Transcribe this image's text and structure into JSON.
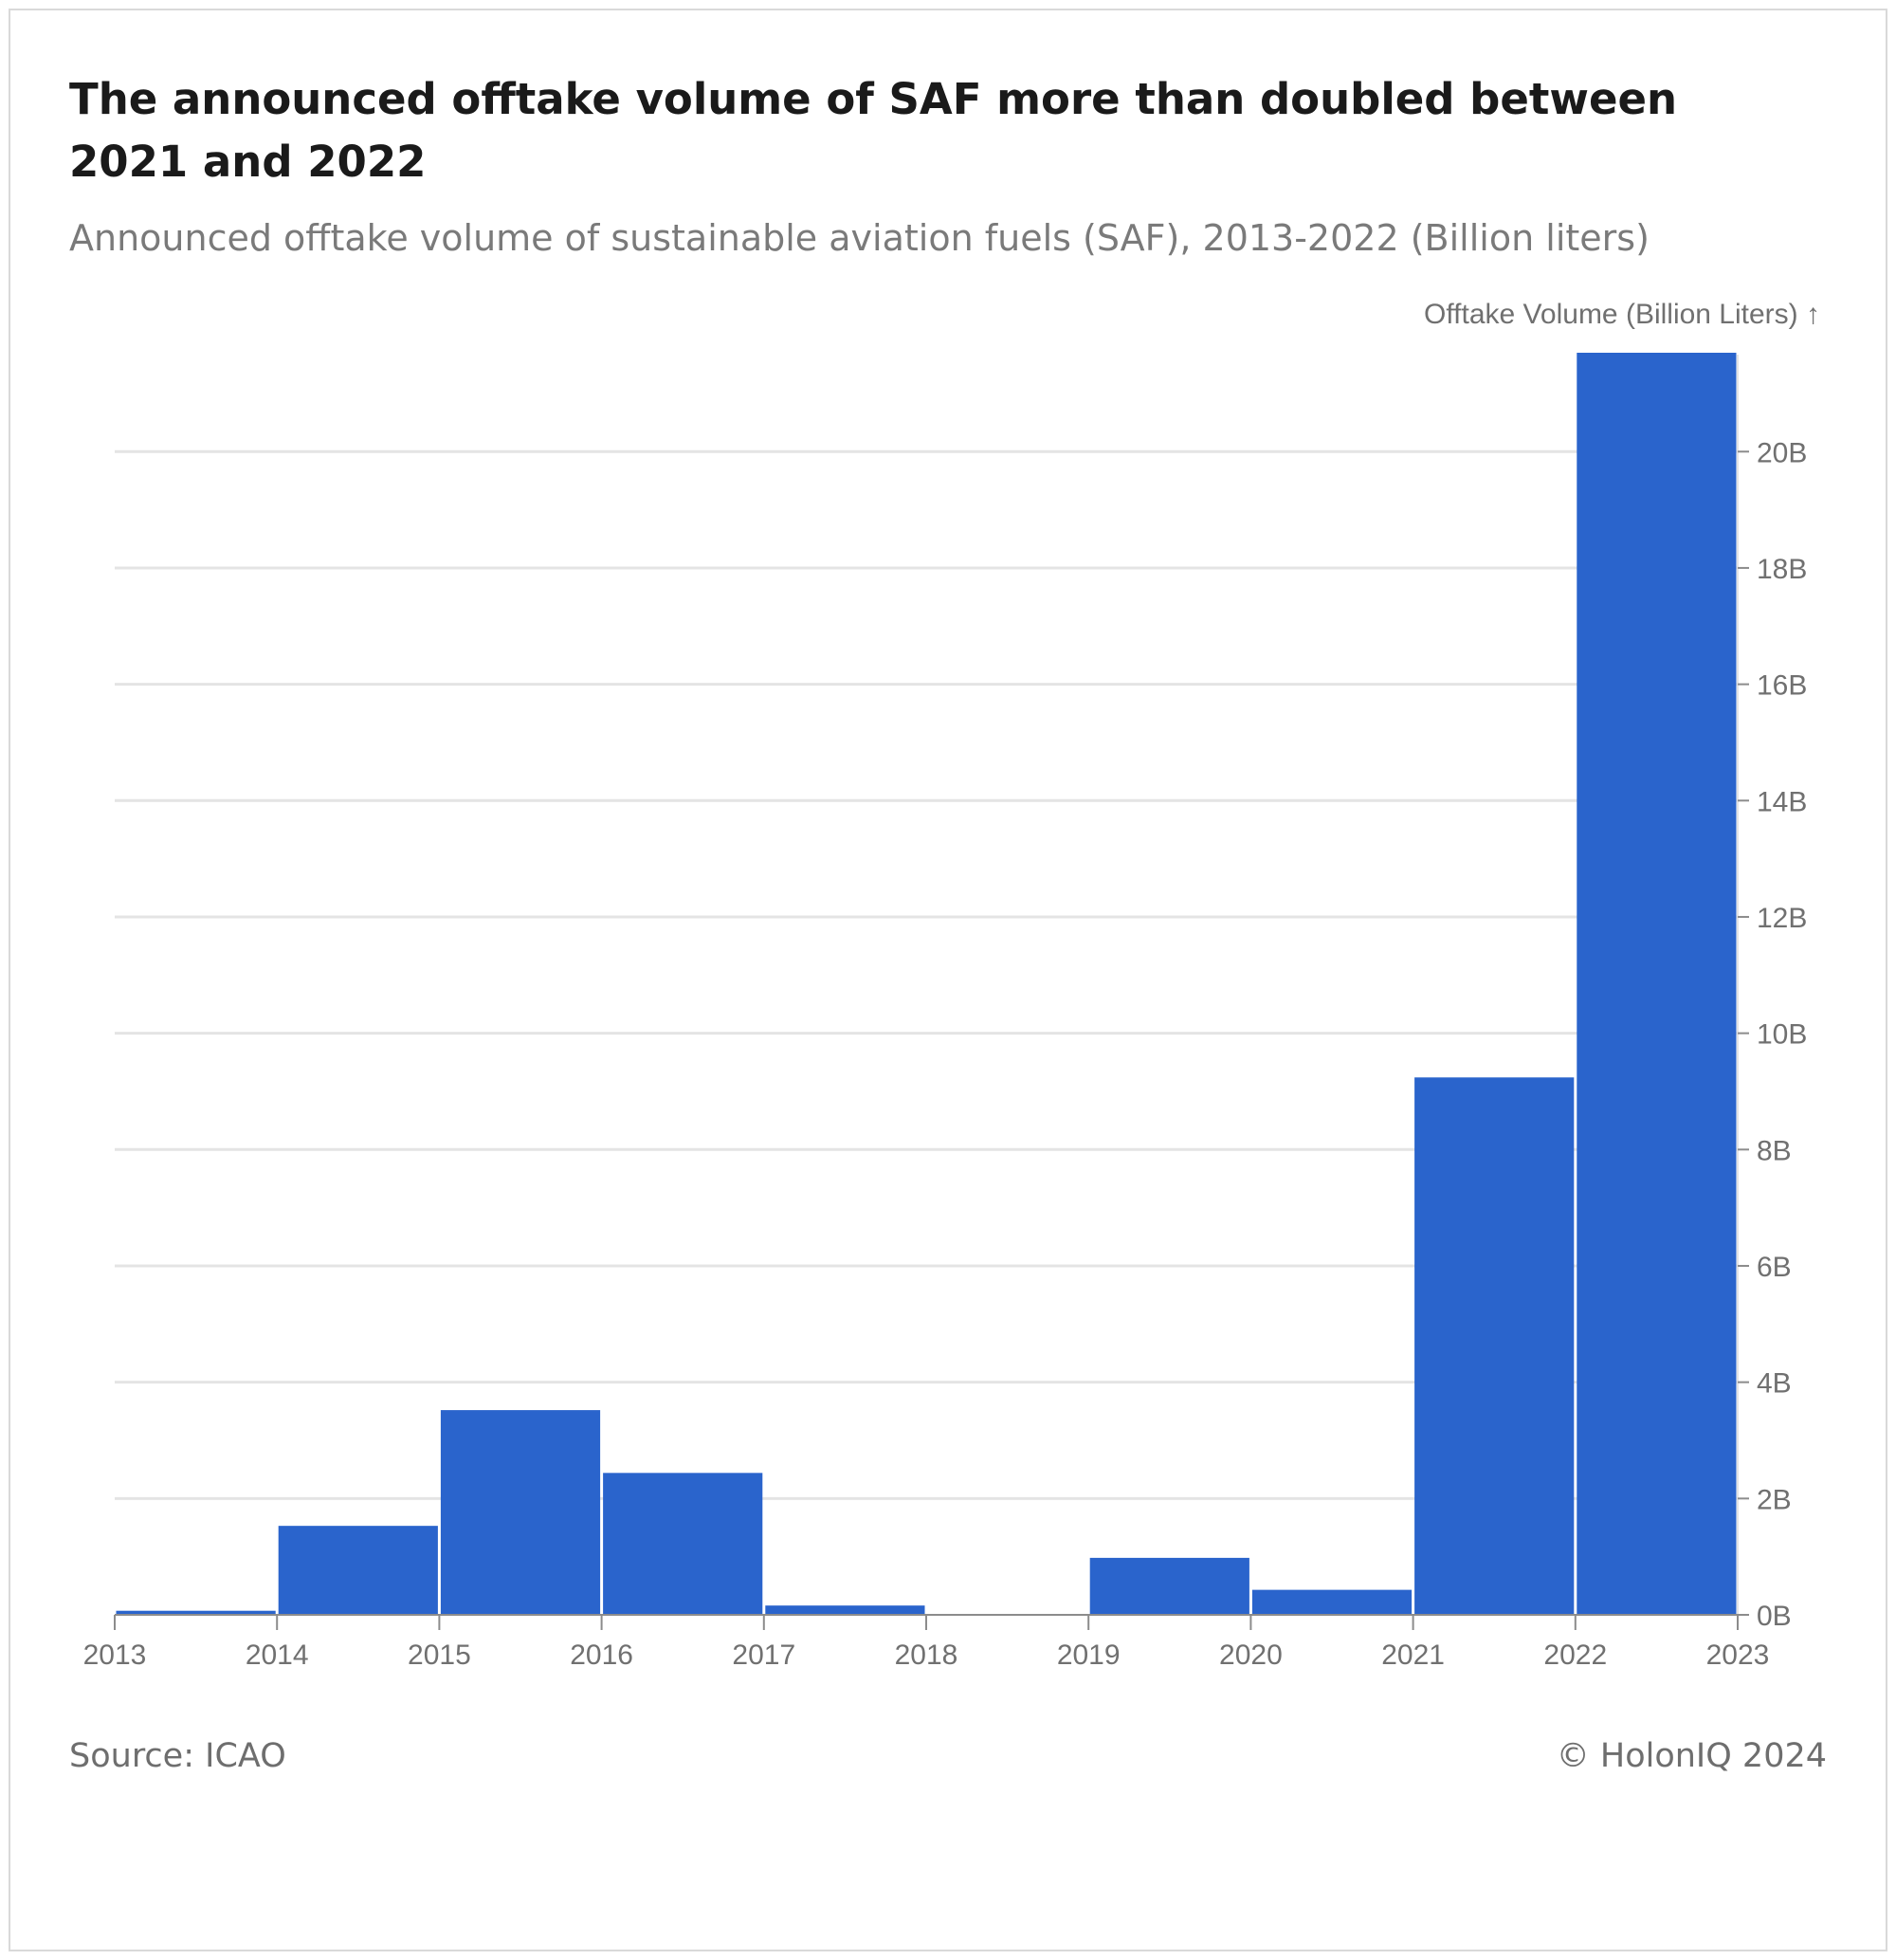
{
  "title": "The announced offtake volume of SAF more than doubled between 2021 and 2022",
  "subtitle": "Announced offtake volume of sustainable aviation fuels (SAF), 2013-2022 (Billion liters)",
  "source": "Source: ICAO",
  "copyright": "© HolonIQ 2024",
  "colors": {
    "bar": "#2a64cc",
    "grid": "#e4e4e4",
    "axis": "#8c8c8c",
    "tick_text": "#707070"
  },
  "chart_data": {
    "type": "bar",
    "title": "The announced offtake volume of SAF more than doubled between 2021 and 2022",
    "ylabel": "Offtake Volume (Billion Liters) ↑",
    "xlabel": "",
    "y_axis_position": "right",
    "grid": true,
    "ylim": [
      0,
      21.7
    ],
    "x_ticks": [
      "2013",
      "2014",
      "2015",
      "2016",
      "2017",
      "2018",
      "2019",
      "2020",
      "2021",
      "2022",
      "2023"
    ],
    "y_ticks": [
      {
        "value": 0,
        "label": "0B"
      },
      {
        "value": 2,
        "label": "2B"
      },
      {
        "value": 4,
        "label": "4B"
      },
      {
        "value": 6,
        "label": "6B"
      },
      {
        "value": 8,
        "label": "8B"
      },
      {
        "value": 10,
        "label": "10B"
      },
      {
        "value": 12,
        "label": "12B"
      },
      {
        "value": 14,
        "label": "14B"
      },
      {
        "value": 16,
        "label": "16B"
      },
      {
        "value": 18,
        "label": "18B"
      },
      {
        "value": 20,
        "label": "20B"
      }
    ],
    "categories": [
      "2013",
      "2014",
      "2015",
      "2016",
      "2017",
      "2018",
      "2019",
      "2020",
      "2021",
      "2022"
    ],
    "values": [
      0.07,
      1.53,
      3.52,
      2.44,
      0.16,
      0,
      0.98,
      0.43,
      9.24,
      21.7
    ]
  }
}
